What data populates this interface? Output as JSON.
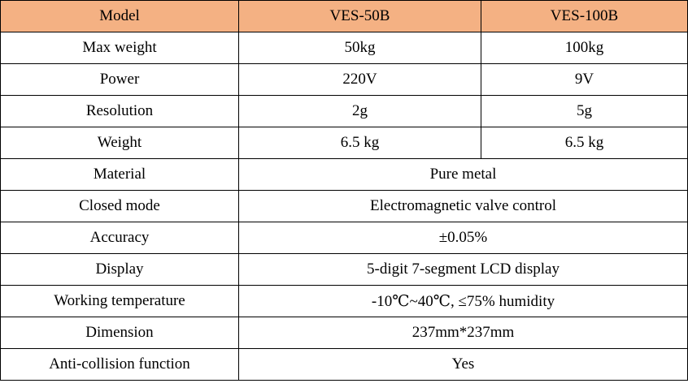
{
  "header": {
    "label": "Model",
    "models": [
      "VES-50B",
      "VES-100B"
    ]
  },
  "split_rows": [
    {
      "label": "Max weight",
      "values": [
        "50kg",
        "100kg"
      ]
    },
    {
      "label": "Power",
      "values": [
        "220V",
        "9V"
      ]
    },
    {
      "label": "Resolution",
      "values": [
        "2g",
        "5g"
      ]
    },
    {
      "label": "Weight",
      "values": [
        "6.5 kg",
        "6.5 kg"
      ]
    }
  ],
  "shared_rows": [
    {
      "label": "Material",
      "value": "Pure metal"
    },
    {
      "label": "Closed mode",
      "value": "Electromagnetic valve control"
    },
    {
      "label": "Accuracy",
      "value": "±0.05%"
    },
    {
      "label": "Display",
      "value": "5-digit 7-segment LCD display"
    },
    {
      "label": "Working temperature",
      "value": "-10℃~40℃, ≤75% humidity"
    },
    {
      "label": "Dimension",
      "value": "237mm*237mm"
    },
    {
      "label": "Anti-collision function",
      "value": "Yes"
    }
  ],
  "colors": {
    "header_background": "#f4b183",
    "border": "#000000",
    "text": "#000000"
  }
}
